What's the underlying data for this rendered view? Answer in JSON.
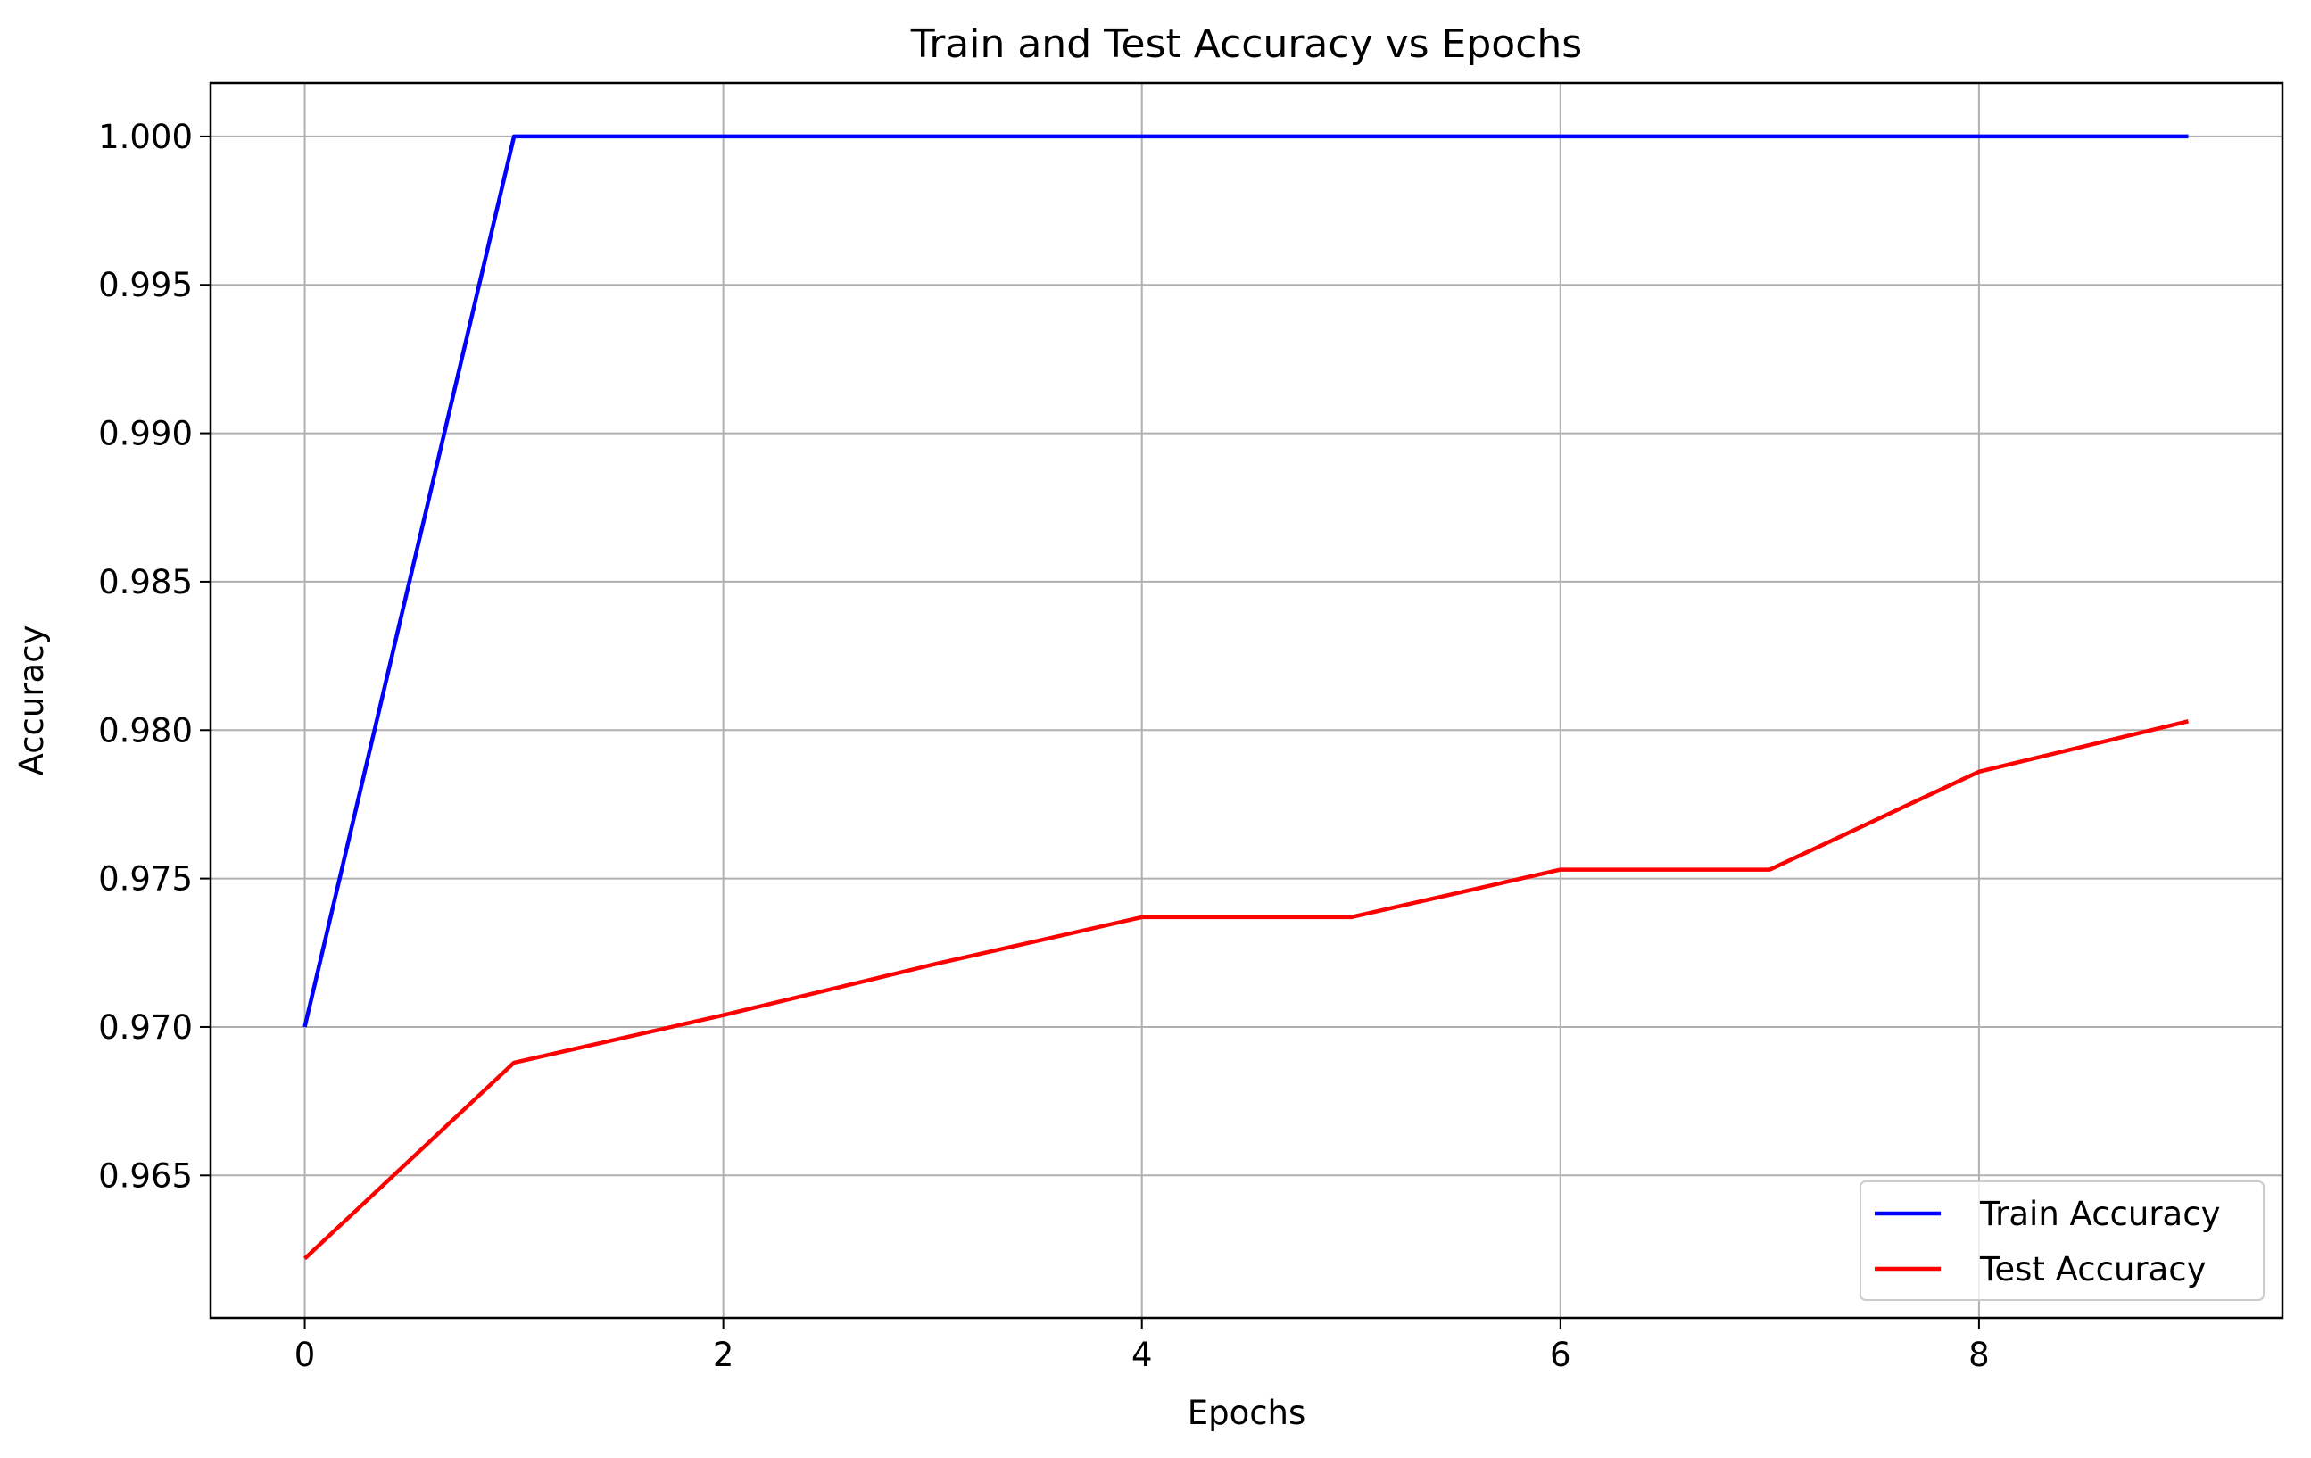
{
  "chart_data": {
    "type": "line",
    "title": "Train and Test Accuracy vs Epochs",
    "xlabel": "Epochs",
    "ylabel": "Accuracy",
    "x": [
      0,
      1,
      2,
      3,
      4,
      5,
      6,
      7,
      8,
      9
    ],
    "xlim": [
      -0.45,
      9.45
    ],
    "ylim": [
      0.9602,
      1.0018
    ],
    "xticks": [
      0,
      2,
      4,
      6,
      8
    ],
    "yticks": [
      0.965,
      0.97,
      0.975,
      0.98,
      0.985,
      0.99,
      0.995,
      1.0
    ],
    "ytick_labels": [
      "0.965",
      "0.970",
      "0.975",
      "0.980",
      "0.985",
      "0.990",
      "0.995",
      "1.000"
    ],
    "grid": true,
    "legend_position": "bottom-right",
    "series": [
      {
        "name": "Train Accuracy",
        "color": "#0000ff",
        "values": [
          0.97,
          1.0,
          1.0,
          1.0,
          1.0,
          1.0,
          1.0,
          1.0,
          1.0,
          1.0
        ]
      },
      {
        "name": "Test Accuracy",
        "color": "#ff0000",
        "values": [
          0.9622,
          0.9688,
          0.9704,
          0.9721,
          0.9737,
          0.9737,
          0.9753,
          0.9753,
          0.9786,
          0.9803
        ]
      }
    ]
  }
}
